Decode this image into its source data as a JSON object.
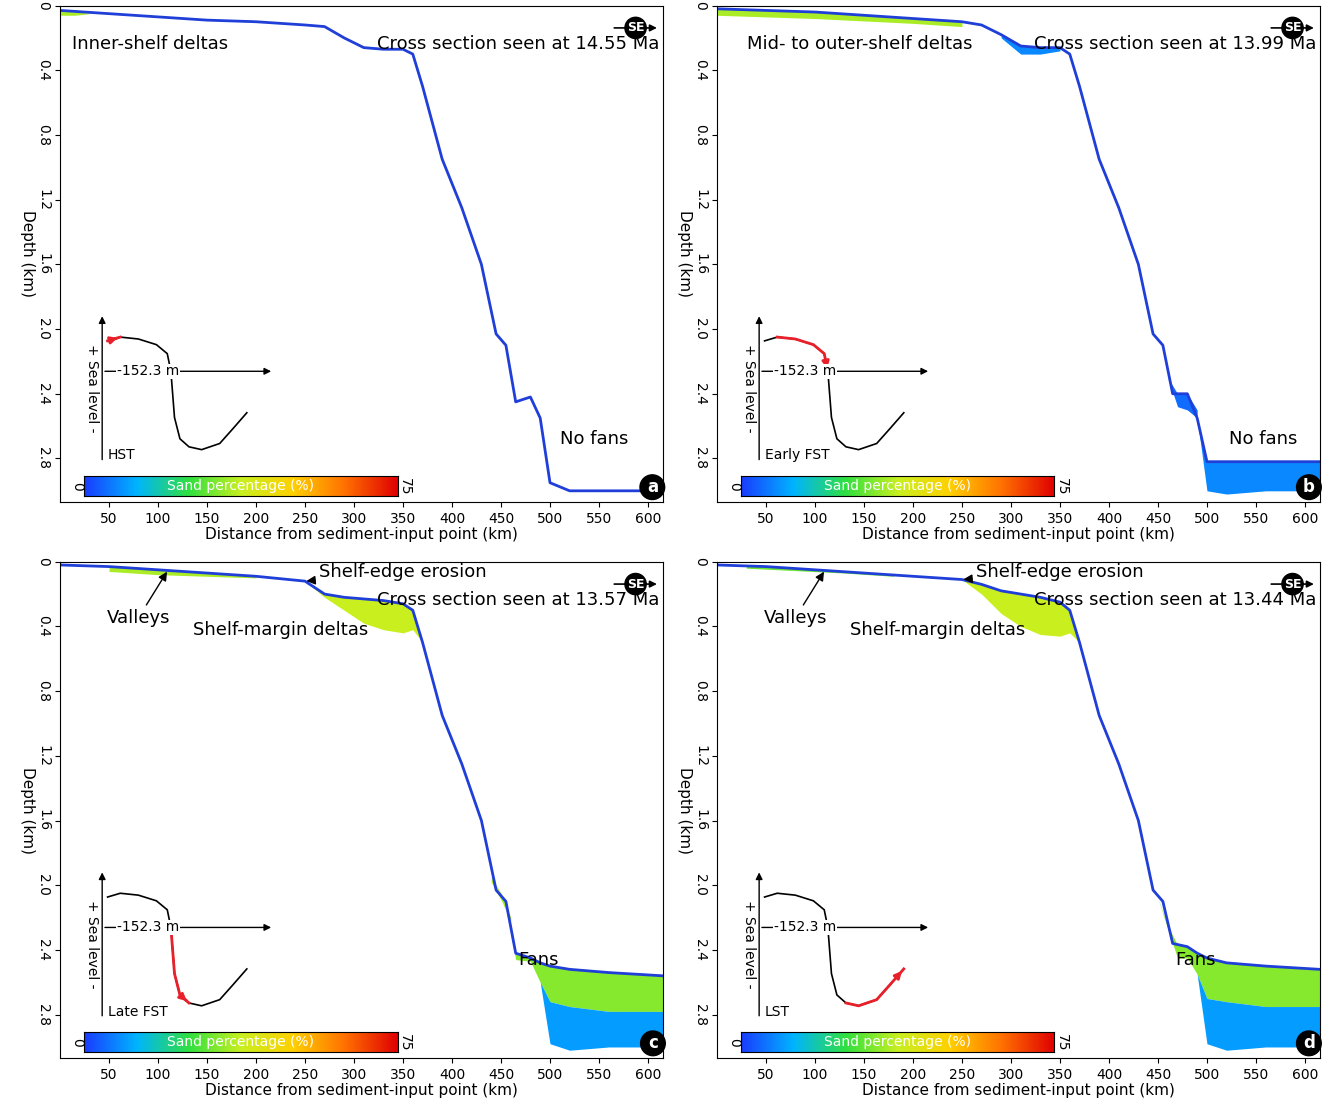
{
  "chart_data": [
    {
      "type": "line",
      "panel": "a",
      "title": "Cross section seen at 14.55 Ma",
      "compass": "SE",
      "x_label": "Distance from sediment-input point (km)",
      "y_label": "Depth (km)",
      "xlim": [
        0,
        615
      ],
      "ylim": [
        3.07,
        0
      ],
      "xticks": [
        50,
        100,
        150,
        200,
        250,
        300,
        350,
        400,
        450,
        500,
        550,
        600
      ],
      "yticks": [
        0,
        0.4,
        0.8,
        1.2,
        1.6,
        2.0,
        2.4,
        2.8
      ],
      "color": "#1f3fd8",
      "x": [
        0,
        50,
        100,
        150,
        200,
        250,
        270,
        290,
        310,
        330,
        350,
        360,
        370,
        390,
        410,
        430,
        445,
        455,
        465,
        480,
        490,
        500,
        520,
        560,
        615
      ],
      "depth": [
        0.03,
        0.05,
        0.07,
        0.09,
        0.1,
        0.12,
        0.13,
        0.2,
        0.26,
        0.27,
        0.27,
        0.3,
        0.5,
        0.95,
        1.25,
        1.6,
        2.03,
        2.1,
        2.45,
        2.42,
        2.55,
        2.95,
        3.0,
        3.0,
        3.0
      ],
      "deposits": [
        {
          "x": [
            0,
            15,
            30
          ],
          "top": [
            0.03,
            0.04,
            0.045
          ],
          "base": [
            0.06,
            0.06,
            0.05
          ],
          "sand": 35
        }
      ],
      "labels": [
        "Inner-shelf deltas",
        "No fans"
      ],
      "pointers": [],
      "sea_level": {
        "x": [
          0.3,
          1.0,
          2.0,
          3.0,
          3.6,
          3.8,
          4.0,
          4.3,
          4.8,
          5.5,
          6.5,
          7.2,
          8.0
        ],
        "y": [
          -88,
          -80,
          -84,
          -96,
          -115,
          -152.3,
          -250,
          -295,
          -312,
          -318,
          -305,
          -275,
          -240
        ],
        "xlim": [
          -1,
          10
        ],
        "ylim": [
          -345,
          -30
        ],
        "highlight": [
          0,
          1
        ],
        "datum": {
          "value": -152.3,
          "label": "-152.3 m"
        },
        "stage": "HST",
        "axis_label": "+ Sea level -"
      },
      "color_bar": {
        "label": "Sand percentage (%)",
        "range": [
          0,
          75
        ],
        "ticks": [
          0,
          75
        ]
      }
    },
    {
      "type": "line",
      "panel": "b",
      "title": "Cross section seen at 13.99 Ma",
      "compass": "SE",
      "x_label": "Distance from sediment-input point (km)",
      "y_label": "Depth (km)",
      "xlim": [
        0,
        615
      ],
      "ylim": [
        3.07,
        0
      ],
      "xticks": [
        50,
        100,
        150,
        200,
        250,
        300,
        350,
        400,
        450,
        500,
        550,
        600
      ],
      "yticks": [
        0,
        0.4,
        0.8,
        1.2,
        1.6,
        2.0,
        2.4,
        2.8
      ],
      "color": "#1f3fd8",
      "x": [
        0,
        50,
        100,
        150,
        200,
        250,
        270,
        290,
        310,
        330,
        350,
        360,
        370,
        390,
        410,
        430,
        445,
        455,
        465,
        480,
        490,
        500,
        520,
        560,
        615
      ],
      "depth": [
        0.02,
        0.03,
        0.04,
        0.06,
        0.08,
        0.1,
        0.12,
        0.18,
        0.25,
        0.26,
        0.26,
        0.3,
        0.5,
        0.95,
        1.25,
        1.6,
        2.03,
        2.1,
        2.4,
        2.4,
        2.55,
        2.82,
        2.82,
        2.82,
        2.82
      ],
      "deposits": [
        {
          "x": [
            0,
            100,
            200,
            250
          ],
          "top": [
            0.02,
            0.04,
            0.08,
            0.1
          ],
          "base": [
            0.06,
            0.08,
            0.11,
            0.13
          ],
          "sand": 35
        },
        {
          "x": [
            290,
            310,
            330,
            350
          ],
          "top": [
            0.18,
            0.25,
            0.26,
            0.26
          ],
          "base": [
            0.2,
            0.3,
            0.3,
            0.28
          ],
          "sand": 8
        },
        {
          "x": [
            460,
            470,
            480,
            490
          ],
          "top": [
            2.3,
            2.4,
            2.4,
            2.5
          ],
          "base": [
            2.3,
            2.48,
            2.5,
            2.55
          ],
          "sand": 5
        },
        {
          "x": [
            490,
            500,
            520,
            560,
            615
          ],
          "top": [
            2.55,
            2.82,
            2.82,
            2.82,
            2.82
          ],
          "base": [
            2.55,
            3.0,
            3.02,
            3.0,
            3.0
          ],
          "sand": 8
        }
      ],
      "labels": [
        "Mid- to outer-shelf deltas",
        "No fans"
      ],
      "pointers": [],
      "sea_level": {
        "x": [
          0.3,
          1.0,
          2.0,
          3.0,
          3.6,
          3.8,
          4.0,
          4.3,
          4.8,
          5.5,
          6.5,
          7.2,
          8.0
        ],
        "y": [
          -88,
          -80,
          -84,
          -96,
          -115,
          -152.3,
          -250,
          -295,
          -312,
          -318,
          -305,
          -275,
          -240
        ],
        "xlim": [
          -1,
          10
        ],
        "ylim": [
          -345,
          -30
        ],
        "highlight": [
          1,
          5
        ],
        "datum": {
          "value": -152.3,
          "label": "-152.3 m"
        },
        "stage": "Early FST",
        "axis_label": "+ Sea level -"
      },
      "color_bar": {
        "label": "Sand percentage (%)",
        "range": [
          0,
          75
        ],
        "ticks": [
          0,
          75
        ]
      }
    },
    {
      "type": "line",
      "panel": "c",
      "title": "Cross section seen at 13.57 Ma",
      "compass": "SE",
      "x_label": "Distance from sediment-input point (km)",
      "y_label": "Depth (km)",
      "xlim": [
        0,
        615
      ],
      "ylim": [
        3.07,
        0
      ],
      "xticks": [
        50,
        100,
        150,
        200,
        250,
        300,
        350,
        400,
        450,
        500,
        550,
        600
      ],
      "yticks": [
        0,
        0.4,
        0.8,
        1.2,
        1.6,
        2.0,
        2.4,
        2.8
      ],
      "color": "#1f3fd8",
      "x": [
        0,
        50,
        100,
        150,
        200,
        250,
        270,
        290,
        310,
        330,
        350,
        360,
        370,
        390,
        410,
        430,
        445,
        455,
        465,
        480,
        490,
        500,
        520,
        560,
        615
      ],
      "depth": [
        0.02,
        0.03,
        0.05,
        0.07,
        0.09,
        0.12,
        0.2,
        0.22,
        0.23,
        0.24,
        0.26,
        0.3,
        0.5,
        0.95,
        1.25,
        1.6,
        2.03,
        2.1,
        2.42,
        2.45,
        2.48,
        2.5,
        2.52,
        2.54,
        2.56
      ],
      "deposits": [
        {
          "x": [
            50,
            100,
            150,
            200
          ],
          "top": [
            0.03,
            0.05,
            0.07,
            0.09
          ],
          "base": [
            0.06,
            0.08,
            0.09,
            0.1
          ],
          "sand": 35
        },
        {
          "x": [
            250,
            270,
            290,
            310,
            330,
            350,
            360,
            370
          ],
          "top": [
            0.12,
            0.2,
            0.22,
            0.23,
            0.24,
            0.26,
            0.3,
            0.5
          ],
          "base": [
            0.12,
            0.22,
            0.3,
            0.38,
            0.42,
            0.44,
            0.42,
            0.5
          ],
          "sand": 38
        },
        {
          "x": [
            440,
            450,
            460
          ],
          "top": [
            1.95,
            2.05,
            2.2
          ],
          "base": [
            1.98,
            2.09,
            2.22
          ],
          "sand": 35
        },
        {
          "x": [
            460,
            465,
            480,
            490,
            500,
            520,
            560,
            615
          ],
          "top": [
            2.3,
            2.42,
            2.45,
            2.48,
            2.5,
            2.52,
            2.54,
            2.56
          ],
          "base": [
            2.3,
            2.46,
            2.47,
            2.6,
            2.72,
            2.75,
            2.78,
            2.78
          ],
          "sand": 32
        },
        {
          "x": [
            490,
            500,
            520,
            560,
            615
          ],
          "top": [
            2.6,
            2.72,
            2.75,
            2.78,
            2.78
          ],
          "base": [
            2.6,
            2.98,
            3.02,
            3.0,
            3.0
          ],
          "sand": 10
        }
      ],
      "labels": [
        "Shelf-margin deltas",
        "Fans"
      ],
      "pointers": [
        {
          "text": "Valleys",
          "x": 110
        },
        {
          "text": "Shelf-edge erosion",
          "x": 250
        }
      ],
      "sea_level": {
        "x": [
          0.3,
          1.0,
          2.0,
          3.0,
          3.6,
          3.8,
          4.0,
          4.3,
          4.8,
          5.5,
          6.5,
          7.2,
          8.0
        ],
        "y": [
          -88,
          -80,
          -84,
          -96,
          -115,
          -152.3,
          -250,
          -295,
          -312,
          -318,
          -305,
          -275,
          -240
        ],
        "xlim": [
          -1,
          10
        ],
        "ylim": [
          -345,
          -30
        ],
        "highlight": [
          5,
          8
        ],
        "datum": {
          "value": -152.3,
          "label": "-152.3 m"
        },
        "stage": "Late FST",
        "axis_label": "+ Sea level -"
      },
      "color_bar": {
        "label": "Sand percentage (%)",
        "range": [
          0,
          75
        ],
        "ticks": [
          0,
          75
        ]
      }
    },
    {
      "type": "line",
      "panel": "d",
      "title": "Cross section seen at 13.44 Ma",
      "compass": "SE",
      "x_label": "Distance from sediment-input point (km)",
      "y_label": "Depth (km)",
      "xlim": [
        0,
        615
      ],
      "ylim": [
        3.07,
        0
      ],
      "xticks": [
        50,
        100,
        150,
        200,
        250,
        300,
        350,
        400,
        450,
        500,
        550,
        600
      ],
      "yticks": [
        0,
        0.4,
        0.8,
        1.2,
        1.6,
        2.0,
        2.4,
        2.8
      ],
      "color": "#1f3fd8",
      "x": [
        0,
        50,
        100,
        150,
        200,
        250,
        270,
        290,
        310,
        330,
        350,
        360,
        370,
        390,
        410,
        430,
        445,
        455,
        465,
        480,
        490,
        500,
        520,
        560,
        615
      ],
      "depth": [
        0.02,
        0.03,
        0.05,
        0.07,
        0.09,
        0.11,
        0.14,
        0.18,
        0.2,
        0.22,
        0.25,
        0.3,
        0.5,
        0.95,
        1.25,
        1.6,
        2.03,
        2.1,
        2.36,
        2.38,
        2.42,
        2.45,
        2.48,
        2.5,
        2.52
      ],
      "deposits": [
        {
          "x": [
            30,
            80,
            130,
            180
          ],
          "top": [
            0.025,
            0.04,
            0.06,
            0.08
          ],
          "base": [
            0.04,
            0.055,
            0.07,
            0.09
          ],
          "sand": 30
        },
        {
          "x": [
            250,
            270,
            290,
            310,
            330,
            350,
            360,
            370
          ],
          "top": [
            0.11,
            0.14,
            0.18,
            0.2,
            0.22,
            0.25,
            0.3,
            0.5
          ],
          "base": [
            0.11,
            0.2,
            0.32,
            0.4,
            0.45,
            0.46,
            0.44,
            0.5
          ],
          "sand": 38
        },
        {
          "x": [
            450,
            460,
            470,
            480,
            490,
            500,
            520,
            560,
            615
          ],
          "top": [
            2.08,
            2.25,
            2.37,
            2.38,
            2.42,
            2.45,
            2.48,
            2.5,
            2.52
          ],
          "base": [
            2.08,
            2.27,
            2.45,
            2.45,
            2.55,
            2.7,
            2.72,
            2.75,
            2.75
          ],
          "sand": 32
        },
        {
          "x": [
            490,
            500,
            520,
            560,
            615
          ],
          "top": [
            2.55,
            2.7,
            2.72,
            2.75,
            2.75
          ],
          "base": [
            2.55,
            2.98,
            3.02,
            3.0,
            3.0
          ],
          "sand": 10
        }
      ],
      "labels": [
        "Shelf-margin deltas",
        "Fans"
      ],
      "pointers": [
        {
          "text": "Valleys",
          "x": 110
        },
        {
          "text": "Shelf-edge erosion",
          "x": 250
        }
      ],
      "sea_level": {
        "x": [
          0.3,
          1.0,
          2.0,
          3.0,
          3.6,
          3.8,
          4.0,
          4.3,
          4.8,
          5.5,
          6.5,
          7.2,
          8.0
        ],
        "y": [
          -88,
          -80,
          -84,
          -96,
          -115,
          -152.3,
          -250,
          -295,
          -312,
          -318,
          -305,
          -275,
          -240
        ],
        "xlim": [
          -1,
          10
        ],
        "ylim": [
          -345,
          -30
        ],
        "highlight": [
          8,
          12
        ],
        "datum": {
          "value": -152.3,
          "label": "-152.3 m"
        },
        "stage": "LST",
        "axis_label": "+ Sea level -"
      },
      "color_bar": {
        "label": "Sand percentage (%)",
        "range": [
          0,
          75
        ],
        "ticks": [
          0,
          75
        ]
      }
    }
  ]
}
